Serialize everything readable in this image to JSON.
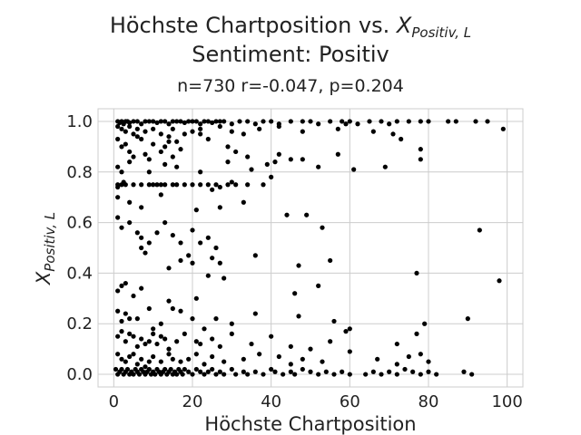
{
  "chart_data": {
    "type": "scatter",
    "title_line1_prefix": "Höchste Chartposition vs. ",
    "title_symbol": "X",
    "title_subscript": "Positiv, L",
    "title_line2": "Sentiment: Positiv",
    "subtitle": "n=730 r=-0.047, p=0.204",
    "xlabel": "Höchste Chartposition",
    "ylabel_symbol": "X",
    "ylabel_subscript": "Positiv, L",
    "xlim": [
      -4,
      104
    ],
    "ylim": [
      -0.05,
      1.05
    ],
    "x_ticks": [
      0,
      20,
      40,
      60,
      80,
      100
    ],
    "x_tick_labels": [
      "0",
      "20",
      "40",
      "60",
      "80",
      "100"
    ],
    "y_ticks": [
      0.0,
      0.2,
      0.4,
      0.6,
      0.8,
      1.0
    ],
    "y_tick_labels": [
      "0.0",
      "0.2",
      "0.4",
      "0.6",
      "0.8",
      "1.0"
    ],
    "grid": true,
    "point_color": "#000000",
    "grid_color": "#cccccc",
    "points": [
      [
        1,
        1.0
      ],
      [
        1.5,
        0.995
      ],
      [
        2,
        1.0
      ],
      [
        2.5,
        0.99
      ],
      [
        3,
        1.0
      ],
      [
        3.5,
        1.0
      ],
      [
        4,
        0.995
      ],
      [
        5,
        1.0
      ],
      [
        6,
        1.0
      ],
      [
        7,
        0.99
      ],
      [
        8,
        1.0
      ],
      [
        9,
        1.0
      ],
      [
        10,
        1.0
      ],
      [
        11,
        0.995
      ],
      [
        12,
        1.0
      ],
      [
        13,
        1.0
      ],
      [
        14,
        0.99
      ],
      [
        15,
        1.0
      ],
      [
        16,
        1.0
      ],
      [
        17,
        1.0
      ],
      [
        18,
        0.995
      ],
      [
        19,
        1.0
      ],
      [
        20,
        1.0
      ],
      [
        21,
        1.0
      ],
      [
        22,
        0.99
      ],
      [
        23,
        1.0
      ],
      [
        24,
        1.0
      ],
      [
        25,
        0.995
      ],
      [
        26,
        1.0
      ],
      [
        27,
        1.0
      ],
      [
        28,
        1.0
      ],
      [
        30,
        0.99
      ],
      [
        32,
        1.0
      ],
      [
        34,
        1.0
      ],
      [
        36,
        0.99
      ],
      [
        38,
        1.0
      ],
      [
        40,
        1.0
      ],
      [
        42,
        0.99
      ],
      [
        45,
        1.0
      ],
      [
        48,
        1.0
      ],
      [
        50,
        1.0
      ],
      [
        52,
        0.99
      ],
      [
        55,
        1.0
      ],
      [
        58,
        1.0
      ],
      [
        60,
        1.0
      ],
      [
        62,
        0.99
      ],
      [
        65,
        1.0
      ],
      [
        68,
        1.0
      ],
      [
        70,
        0.99
      ],
      [
        72,
        1.0
      ],
      [
        75,
        1.0
      ],
      [
        78,
        1.0
      ],
      [
        80,
        1.0
      ],
      [
        85,
        1.0
      ],
      [
        87,
        1.0
      ],
      [
        92,
        1.0
      ],
      [
        95,
        1.0
      ],
      [
        1,
        0.98
      ],
      [
        2,
        0.97
      ],
      [
        3,
        0.96
      ],
      [
        4,
        0.98
      ],
      [
        5,
        0.95
      ],
      [
        6,
        0.97
      ],
      [
        7,
        0.93
      ],
      [
        8,
        0.96
      ],
      [
        10,
        0.97
      ],
      [
        12,
        0.95
      ],
      [
        14,
        0.94
      ],
      [
        15,
        0.97
      ],
      [
        16,
        0.92
      ],
      [
        18,
        0.95
      ],
      [
        20,
        0.96
      ],
      [
        22,
        0.97
      ],
      [
        24,
        0.93
      ],
      [
        27,
        0.98
      ],
      [
        30,
        0.96
      ],
      [
        33,
        0.95
      ],
      [
        37,
        0.97
      ],
      [
        42,
        0.98
      ],
      [
        48,
        0.96
      ],
      [
        57,
        0.97
      ],
      [
        59,
        0.99
      ],
      [
        66,
        0.96
      ],
      [
        71,
        0.95
      ],
      [
        73,
        0.93
      ],
      [
        99,
        0.97
      ],
      [
        1,
        0.93
      ],
      [
        2,
        0.9
      ],
      [
        3,
        0.91
      ],
      [
        4,
        0.88
      ],
      [
        5,
        0.86
      ],
      [
        6,
        0.94
      ],
      [
        8,
        0.87
      ],
      [
        9,
        0.85
      ],
      [
        10,
        0.91
      ],
      [
        12,
        0.88
      ],
      [
        13,
        0.9
      ],
      [
        14,
        0.92
      ],
      [
        15,
        0.86
      ],
      [
        17,
        0.89
      ],
      [
        22,
        0.95
      ],
      [
        29,
        0.9
      ],
      [
        31,
        0.88
      ],
      [
        34,
        0.86
      ],
      [
        42,
        0.87
      ],
      [
        48,
        0.85
      ],
      [
        57,
        0.87
      ],
      [
        78,
        0.89
      ],
      [
        1,
        0.82
      ],
      [
        2,
        0.8
      ],
      [
        4,
        0.84
      ],
      [
        9,
        0.8
      ],
      [
        13,
        0.83
      ],
      [
        16,
        0.82
      ],
      [
        22,
        0.8
      ],
      [
        29,
        0.84
      ],
      [
        35,
        0.81
      ],
      [
        39,
        0.83
      ],
      [
        41,
        0.84
      ],
      [
        45,
        0.85
      ],
      [
        52,
        0.82
      ],
      [
        61,
        0.81
      ],
      [
        69,
        0.82
      ],
      [
        78,
        0.85
      ],
      [
        1,
        0.75
      ],
      [
        2,
        0.75
      ],
      [
        3,
        0.75
      ],
      [
        5,
        0.75
      ],
      [
        7,
        0.75
      ],
      [
        9,
        0.75
      ],
      [
        10,
        0.75
      ],
      [
        11,
        0.75
      ],
      [
        12,
        0.75
      ],
      [
        13,
        0.75
      ],
      [
        15,
        0.75
      ],
      [
        16,
        0.75
      ],
      [
        18,
        0.75
      ],
      [
        20,
        0.75
      ],
      [
        22,
        0.75
      ],
      [
        24,
        0.75
      ],
      [
        26,
        0.75
      ],
      [
        1,
        0.74
      ],
      [
        2.5,
        0.76
      ],
      [
        25,
        0.73
      ],
      [
        27,
        0.74
      ],
      [
        29,
        0.75
      ],
      [
        30,
        0.76
      ],
      [
        31,
        0.75
      ],
      [
        34,
        0.75
      ],
      [
        38,
        0.75
      ],
      [
        40,
        0.78
      ],
      [
        1,
        0.7
      ],
      [
        4,
        0.68
      ],
      [
        7,
        0.66
      ],
      [
        12,
        0.71
      ],
      [
        21,
        0.65
      ],
      [
        27,
        0.66
      ],
      [
        33,
        0.68
      ],
      [
        1,
        0.62
      ],
      [
        2,
        0.58
      ],
      [
        4,
        0.6
      ],
      [
        6,
        0.56
      ],
      [
        7,
        0.54
      ],
      [
        9,
        0.52
      ],
      [
        11,
        0.56
      ],
      [
        13,
        0.6
      ],
      [
        15,
        0.55
      ],
      [
        17,
        0.52
      ],
      [
        20,
        0.57
      ],
      [
        22,
        0.52
      ],
      [
        24,
        0.54
      ],
      [
        26,
        0.5
      ],
      [
        44,
        0.63
      ],
      [
        49,
        0.63
      ],
      [
        53,
        0.58
      ],
      [
        93,
        0.57
      ],
      [
        7,
        0.5
      ],
      [
        8,
        0.48
      ],
      [
        14,
        0.42
      ],
      [
        17,
        0.45
      ],
      [
        19,
        0.47
      ],
      [
        20,
        0.44
      ],
      [
        25,
        0.46
      ],
      [
        27,
        0.44
      ],
      [
        36,
        0.47
      ],
      [
        47,
        0.43
      ],
      [
        55,
        0.45
      ],
      [
        77,
        0.4
      ],
      [
        98,
        0.37
      ],
      [
        1,
        0.33
      ],
      [
        2,
        0.35
      ],
      [
        3,
        0.36
      ],
      [
        5,
        0.31
      ],
      [
        7,
        0.34
      ],
      [
        14,
        0.29
      ],
      [
        21,
        0.3
      ],
      [
        24,
        0.39
      ],
      [
        28,
        0.38
      ],
      [
        46,
        0.32
      ],
      [
        52,
        0.35
      ],
      [
        1,
        0.25
      ],
      [
        2,
        0.21
      ],
      [
        3,
        0.24
      ],
      [
        4,
        0.22
      ],
      [
        6,
        0.22
      ],
      [
        9,
        0.26
      ],
      [
        10,
        0.18
      ],
      [
        12,
        0.2
      ],
      [
        15,
        0.26
      ],
      [
        17,
        0.25
      ],
      [
        20,
        0.22
      ],
      [
        23,
        0.18
      ],
      [
        26,
        0.22
      ],
      [
        30,
        0.2
      ],
      [
        36,
        0.24
      ],
      [
        47,
        0.23
      ],
      [
        56,
        0.21
      ],
      [
        60,
        0.18
      ],
      [
        79,
        0.2
      ],
      [
        90,
        0.22
      ],
      [
        1,
        0.15
      ],
      [
        2,
        0.17
      ],
      [
        3,
        0.13
      ],
      [
        4,
        0.16
      ],
      [
        5,
        0.15
      ],
      [
        6,
        0.11
      ],
      [
        7,
        0.14
      ],
      [
        8,
        0.12
      ],
      [
        9,
        0.13
      ],
      [
        10,
        0.16
      ],
      [
        11,
        0.12
      ],
      [
        12,
        0.15
      ],
      [
        13,
        0.14
      ],
      [
        14,
        0.1
      ],
      [
        16,
        0.13
      ],
      [
        18,
        0.16
      ],
      [
        21,
        0.13
      ],
      [
        22,
        0.12
      ],
      [
        25,
        0.14
      ],
      [
        27,
        0.11
      ],
      [
        30,
        0.16
      ],
      [
        35,
        0.12
      ],
      [
        40,
        0.15
      ],
      [
        45,
        0.11
      ],
      [
        50,
        0.1
      ],
      [
        55,
        0.13
      ],
      [
        59,
        0.17
      ],
      [
        72,
        0.12
      ],
      [
        77,
        0.16
      ],
      [
        1,
        0.08
      ],
      [
        2,
        0.06
      ],
      [
        3,
        0.05
      ],
      [
        4,
        0.07
      ],
      [
        5,
        0.08
      ],
      [
        6,
        0.04
      ],
      [
        7,
        0.06
      ],
      [
        8,
        0.03
      ],
      [
        9,
        0.05
      ],
      [
        10,
        0.07
      ],
      [
        12,
        0.05
      ],
      [
        14,
        0.08
      ],
      [
        15,
        0.06
      ],
      [
        17,
        0.05
      ],
      [
        19,
        0.06
      ],
      [
        21,
        0.08
      ],
      [
        23,
        0.04
      ],
      [
        25,
        0.07
      ],
      [
        28,
        0.05
      ],
      [
        33,
        0.06
      ],
      [
        37,
        0.08
      ],
      [
        42,
        0.07
      ],
      [
        45,
        0.04
      ],
      [
        48,
        0.06
      ],
      [
        53,
        0.05
      ],
      [
        60,
        0.09
      ],
      [
        67,
        0.06
      ],
      [
        72,
        0.04
      ],
      [
        75,
        0.07
      ],
      [
        78,
        0.08
      ],
      [
        80,
        0.05
      ],
      [
        0.5,
        0.02
      ],
      [
        1,
        0.0
      ],
      [
        1.5,
        0.01
      ],
      [
        2,
        0.02
      ],
      [
        2.5,
        0.0
      ],
      [
        3,
        0.01
      ],
      [
        3.5,
        0.02
      ],
      [
        4,
        0.0
      ],
      [
        4.5,
        0.01
      ],
      [
        5,
        0.0
      ],
      [
        5.5,
        0.02
      ],
      [
        6,
        0.01
      ],
      [
        6.5,
        0.0
      ],
      [
        7,
        0.02
      ],
      [
        7.5,
        0.01
      ],
      [
        8,
        0.0
      ],
      [
        8.5,
        0.01
      ],
      [
        9,
        0.02
      ],
      [
        9.5,
        0.0
      ],
      [
        10,
        0.01
      ],
      [
        10.5,
        0.0
      ],
      [
        11,
        0.02
      ],
      [
        11.5,
        0.01
      ],
      [
        12,
        0.0
      ],
      [
        12.5,
        0.01
      ],
      [
        13,
        0.02
      ],
      [
        13.5,
        0.0
      ],
      [
        14,
        0.01
      ],
      [
        14.5,
        0.02
      ],
      [
        15,
        0.0
      ],
      [
        15.5,
        0.01
      ],
      [
        16,
        0.0
      ],
      [
        16.5,
        0.02
      ],
      [
        17,
        0.01
      ],
      [
        17.5,
        0.0
      ],
      [
        18,
        0.02
      ],
      [
        19,
        0.01
      ],
      [
        20,
        0.0
      ],
      [
        21,
        0.02
      ],
      [
        22,
        0.01
      ],
      [
        23,
        0.0
      ],
      [
        24,
        0.01
      ],
      [
        25,
        0.02
      ],
      [
        26,
        0.0
      ],
      [
        27,
        0.01
      ],
      [
        28,
        0.0
      ],
      [
        30,
        0.02
      ],
      [
        31,
        0.0
      ],
      [
        33,
        0.01
      ],
      [
        34,
        0.0
      ],
      [
        36,
        0.01
      ],
      [
        38,
        0.0
      ],
      [
        40,
        0.02
      ],
      [
        41,
        0.01
      ],
      [
        43,
        0.0
      ],
      [
        45,
        0.01
      ],
      [
        46,
        0.0
      ],
      [
        48,
        0.02
      ],
      [
        50,
        0.01
      ],
      [
        52,
        0.0
      ],
      [
        54,
        0.01
      ],
      [
        56,
        0.0
      ],
      [
        58,
        0.01
      ],
      [
        60,
        0.0
      ],
      [
        64,
        0.0
      ],
      [
        66,
        0.01
      ],
      [
        68,
        0.0
      ],
      [
        70,
        0.01
      ],
      [
        72,
        0.0
      ],
      [
        74,
        0.02
      ],
      [
        76,
        0.01
      ],
      [
        78,
        0.0
      ],
      [
        80,
        0.01
      ],
      [
        82,
        0.0
      ],
      [
        89,
        0.01
      ],
      [
        91,
        0.0
      ]
    ]
  }
}
